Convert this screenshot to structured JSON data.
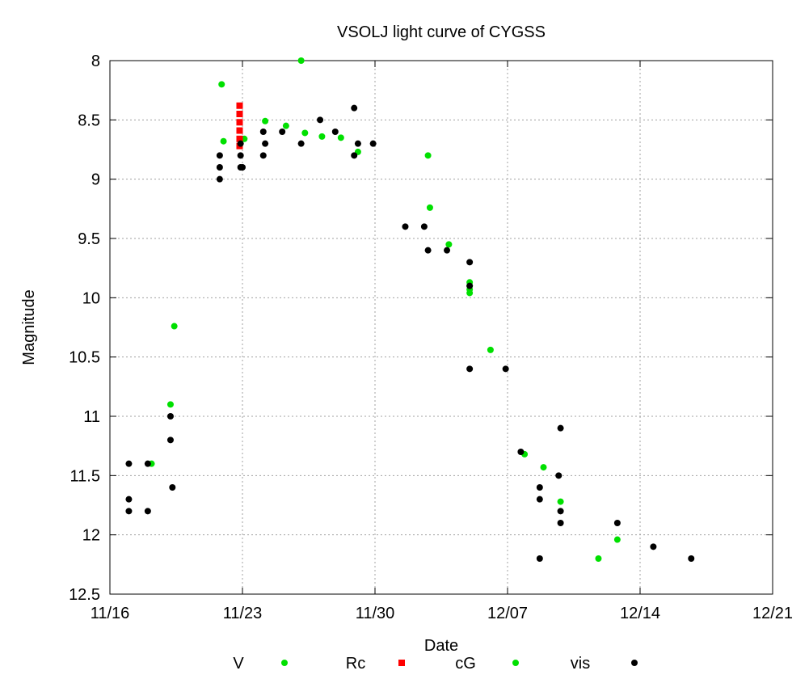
{
  "chart_data": {
    "type": "scatter",
    "title": "VSOLJ light curve of CYGSS",
    "xlabel": "Date",
    "ylabel": "Magnitude",
    "x_axis": {
      "units": "days after 11/16",
      "range": [
        0,
        35
      ],
      "ticks": [
        {
          "x": 0,
          "label": "11/16"
        },
        {
          "x": 7,
          "label": "11/23"
        },
        {
          "x": 14,
          "label": "11/30"
        },
        {
          "x": 21,
          "label": "12/07"
        },
        {
          "x": 28,
          "label": "12/14"
        },
        {
          "x": 35,
          "label": "12/21"
        }
      ]
    },
    "y_axis": {
      "inverted": true,
      "range": [
        8,
        12.5
      ],
      "ticks": [
        8,
        8.5,
        9,
        9.5,
        10,
        10.5,
        11,
        11.5,
        12,
        12.5
      ],
      "tick_labels": [
        "8",
        "8.5",
        "9",
        "9.5",
        "10",
        "10.5",
        "11",
        "11.5",
        "12",
        "12.5"
      ]
    },
    "grid": true,
    "legend_position": "bottom",
    "series": [
      {
        "name": "V",
        "color": "#00e000",
        "marker": "circle",
        "points": [
          [
            2.2,
            11.4
          ],
          [
            3.2,
            10.9
          ],
          [
            3.4,
            10.24
          ],
          [
            5.9,
            8.2
          ],
          [
            6.0,
            8.68
          ],
          [
            7.1,
            8.66
          ],
          [
            8.2,
            8.51
          ],
          [
            9.3,
            8.55
          ],
          [
            10.1,
            8.0
          ],
          [
            10.3,
            8.61
          ],
          [
            11.2,
            8.64
          ],
          [
            12.2,
            8.65
          ],
          [
            13.1,
            8.77
          ],
          [
            16.8,
            8.8
          ],
          [
            16.9,
            9.24
          ],
          [
            17.9,
            9.55
          ],
          [
            19.0,
            9.87
          ],
          [
            19.0,
            9.9
          ],
          [
            19.0,
            9.93
          ],
          [
            19.0,
            9.96
          ],
          [
            20.1,
            10.44
          ],
          [
            21.9,
            11.32
          ],
          [
            22.9,
            11.43
          ],
          [
            23.8,
            11.72
          ],
          [
            25.8,
            12.2
          ],
          [
            26.8,
            12.04
          ]
        ]
      },
      {
        "name": "Rc",
        "color": "#ff0000",
        "marker": "square",
        "points": [
          [
            6.85,
            8.38
          ],
          [
            6.85,
            8.45
          ],
          [
            6.85,
            8.52
          ],
          [
            6.85,
            8.59
          ],
          [
            6.85,
            8.66
          ],
          [
            6.85,
            8.72
          ]
        ]
      },
      {
        "name": "cG",
        "color": "#00e000",
        "marker": "circle",
        "points": []
      },
      {
        "name": "vis",
        "color": "#000000",
        "marker": "circle",
        "points": [
          [
            1.0,
            11.4
          ],
          [
            1.0,
            11.7
          ],
          [
            1.0,
            11.8
          ],
          [
            2.0,
            11.4
          ],
          [
            2.0,
            11.8
          ],
          [
            3.2,
            11.0
          ],
          [
            3.2,
            11.2
          ],
          [
            3.3,
            11.6
          ],
          [
            5.8,
            8.8
          ],
          [
            5.8,
            8.9
          ],
          [
            5.8,
            9.0
          ],
          [
            6.9,
            8.7
          ],
          [
            6.9,
            8.8
          ],
          [
            6.9,
            8.9
          ],
          [
            7.0,
            8.9
          ],
          [
            8.1,
            8.6
          ],
          [
            8.1,
            8.8
          ],
          [
            8.2,
            8.7
          ],
          [
            9.1,
            8.6
          ],
          [
            10.1,
            8.7
          ],
          [
            11.1,
            8.5
          ],
          [
            11.9,
            8.6
          ],
          [
            12.9,
            8.4
          ],
          [
            12.9,
            8.8
          ],
          [
            13.1,
            8.7
          ],
          [
            13.9,
            8.7
          ],
          [
            15.6,
            9.4
          ],
          [
            16.6,
            9.4
          ],
          [
            16.8,
            9.6
          ],
          [
            17.8,
            9.6
          ],
          [
            19.0,
            9.7
          ],
          [
            19.0,
            9.9
          ],
          [
            19.0,
            10.6
          ],
          [
            20.9,
            10.6
          ],
          [
            21.7,
            11.3
          ],
          [
            22.7,
            11.6
          ],
          [
            22.7,
            11.7
          ],
          [
            22.7,
            12.2
          ],
          [
            23.7,
            11.5
          ],
          [
            23.8,
            11.1
          ],
          [
            23.8,
            11.8
          ],
          [
            23.8,
            11.9
          ],
          [
            26.8,
            11.9
          ],
          [
            28.7,
            12.1
          ],
          [
            30.7,
            12.2
          ]
        ]
      }
    ]
  }
}
